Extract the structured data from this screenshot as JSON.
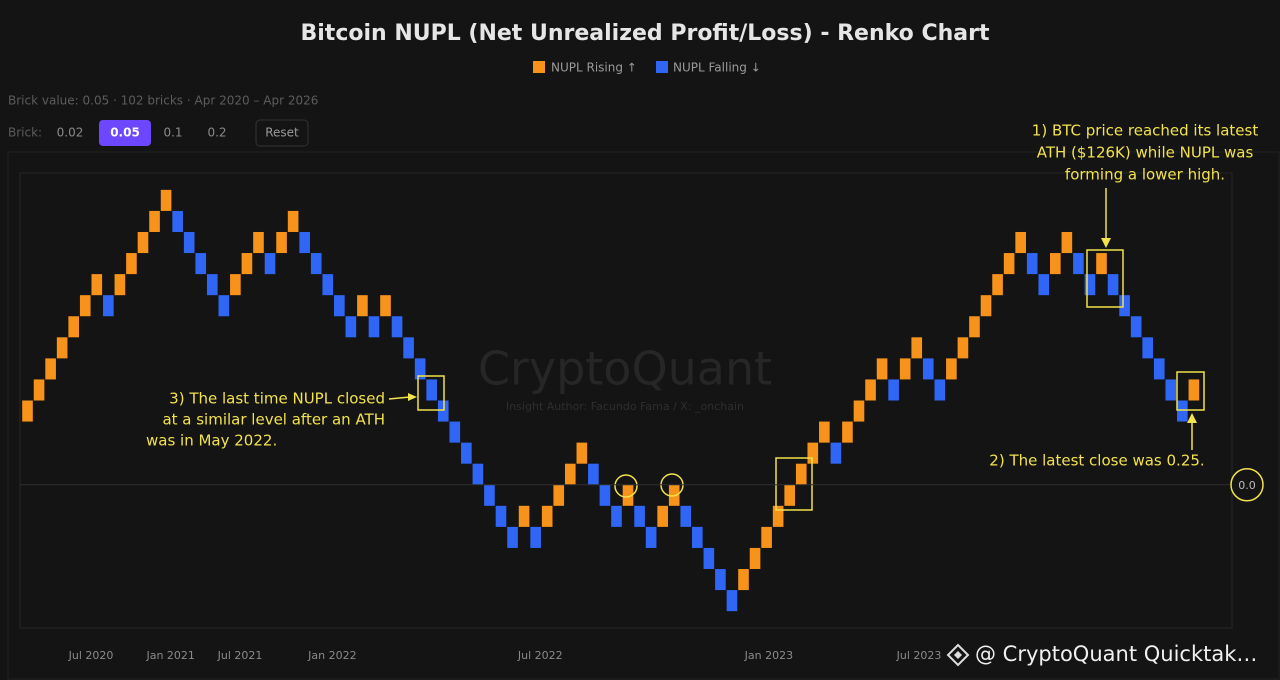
{
  "info": "Brick value: 0.05 · 102 bricks · Apr 2020 – Apr 2026",
  "controls": {
    "label": "Brick:",
    "options": [
      0.02,
      0.05,
      0.1,
      0.2
    ],
    "active": 1,
    "reset": "Reset"
  },
  "chart_data": {
    "type": "renko",
    "title": "Bitcoin NUPL (Net Unrealized Profit/Loss) - Renko Chart",
    "series": [
      {
        "name": "NUPL Rising ↑",
        "color": "#f7931a",
        "values": [
          0.2,
          0.25,
          0.3,
          0.35,
          0.4,
          0.45,
          0.5,
          null,
          0.5,
          0.55,
          0.6,
          0.65,
          0.7,
          null,
          null,
          null,
          null,
          null,
          0.5,
          0.55,
          0.6,
          null,
          0.6,
          0.65,
          null,
          null,
          null,
          null,
          null,
          0.45,
          null,
          0.45,
          null,
          null,
          null,
          null,
          null,
          null,
          null,
          null,
          null,
          null,
          null,
          -0.05,
          null,
          -0.05,
          0,
          0.05,
          0.1,
          null,
          null,
          null,
          0,
          null,
          null,
          -0.05,
          0,
          null,
          null,
          null,
          null,
          null,
          -0.2,
          -0.15,
          -0.1,
          -0.05,
          0,
          0.05,
          0.1,
          0.15,
          null,
          0.15,
          0.2,
          0.25,
          0.3,
          null,
          0.3,
          0.35,
          null,
          null,
          0.3,
          0.35,
          0.4,
          0.45,
          0.5,
          0.55,
          0.6,
          null,
          null,
          0.55,
          0.6,
          null,
          null,
          0.55,
          null,
          null,
          null,
          null,
          null,
          null,
          null,
          0.25
        ]
      },
      {
        "name": "NUPL Falling ↓",
        "color": "#2f66f6",
        "values": [
          null,
          null,
          null,
          null,
          null,
          null,
          null,
          0.4,
          null,
          null,
          null,
          null,
          null,
          0.6,
          0.55,
          0.5,
          0.45,
          0.4,
          null,
          null,
          null,
          0.5,
          null,
          null,
          0.55,
          0.5,
          0.45,
          0.4,
          0.35,
          null,
          0.35,
          null,
          0.35,
          0.3,
          0.25,
          0.2,
          0.15,
          0.1,
          0.05,
          0,
          -0.05,
          -0.1,
          -0.15,
          null,
          -0.15,
          null,
          null,
          null,
          null,
          0,
          -0.05,
          -0.1,
          null,
          -0.1,
          -0.15,
          null,
          null,
          -0.1,
          -0.15,
          -0.2,
          -0.25,
          -0.3,
          null,
          null,
          null,
          null,
          null,
          null,
          null,
          null,
          0.05,
          null,
          null,
          null,
          null,
          0.2,
          null,
          null,
          0.25,
          0.2,
          null,
          null,
          null,
          null,
          null,
          null,
          null,
          0.5,
          0.45,
          null,
          null,
          0.5,
          0.45,
          null,
          0.45,
          0.4,
          0.35,
          0.3,
          0.25,
          0.2,
          0.15,
          null
        ]
      }
    ],
    "ylim": [
      -0.34,
      0.74
    ],
    "yticks": [
      {
        "value": 0,
        "label": "0.0"
      }
    ],
    "xlim": [
      -0.65,
      104.3
    ],
    "xticks": [
      {
        "value": 5.5,
        "label": "Jul 2020"
      },
      {
        "value": 12.4,
        "label": "Jan 2021"
      },
      {
        "value": 18.4,
        "label": "Jul 2021"
      },
      {
        "value": 26.4,
        "label": "Jan 2022"
      },
      {
        "value": 44.4,
        "label": "Jul 2022"
      },
      {
        "value": 64.2,
        "label": "Jan 2023"
      },
      {
        "value": 77.2,
        "label": "Jul 2023"
      }
    ],
    "watermark": "CryptoQuant",
    "watermark_sub": "Insight Author: Facundo Fama / X: _onchain",
    "annotations": [
      {
        "lines": [
          "1) BTC price reached its latest",
          "ATH ($126K) while NUPL was",
          "forming a lower high."
        ]
      },
      {
        "lines": [
          "2) The latest close was 0.25."
        ]
      },
      {
        "lines": [
          "3) The last time NUPL closed",
          "at a similar level after an ATH",
          "was in May 2022."
        ]
      }
    ]
  },
  "footer": "@ CryptoQuant Quicktak…"
}
